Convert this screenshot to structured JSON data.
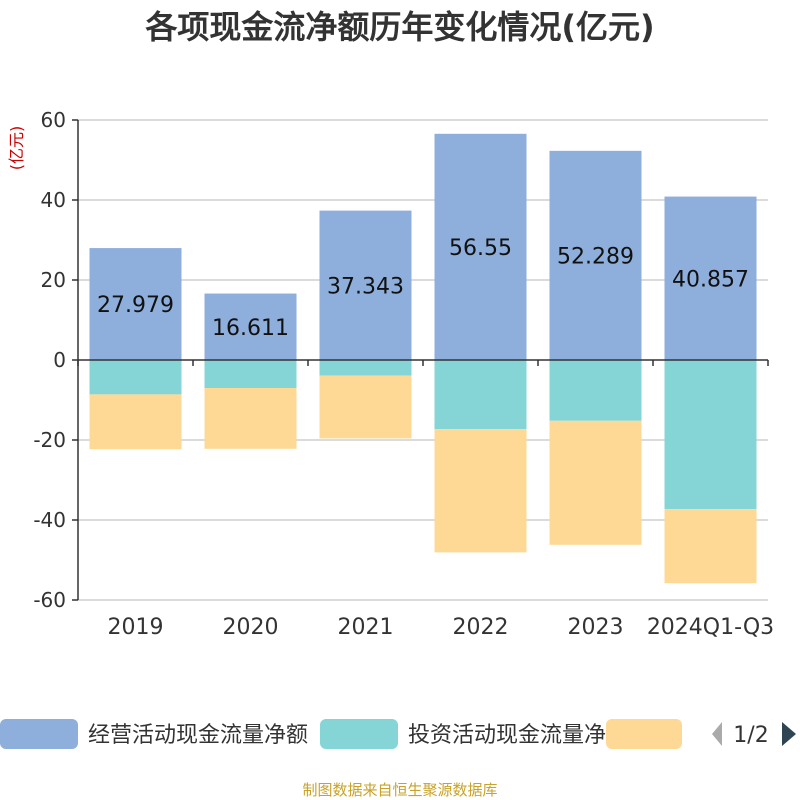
{
  "chart_data": {
    "type": "bar",
    "stacked": true,
    "title": "各项现金流净额历年变化情况(亿元)",
    "unit_label": "(亿元)",
    "categories": [
      "2019",
      "2020",
      "2021",
      "2022",
      "2023",
      "2024Q1-Q3"
    ],
    "ylim": [
      -60,
      60
    ],
    "yticks": [
      60,
      40,
      20,
      0,
      -20,
      -40,
      -60
    ],
    "grid": true,
    "legend_position": "bottom",
    "series": [
      {
        "name": "经营活动现金流量净额",
        "color": "#8eaedb",
        "values": [
          27.979,
          16.611,
          37.343,
          56.55,
          52.289,
          40.857
        ],
        "labels": [
          "27.979",
          "16.611",
          "37.343",
          "56.55",
          "52.289",
          "40.857"
        ]
      },
      {
        "name": "投资活动现金流量净额",
        "color": "#85d5d6",
        "values": [
          -8.6,
          -7.0,
          -3.9,
          -17.3,
          -15.2,
          -37.3
        ]
      },
      {
        "name": "",
        "color": "#fed996",
        "values": [
          -13.7,
          -15.2,
          -15.7,
          -30.8,
          -31.0,
          -18.5
        ]
      }
    ]
  },
  "legend": {
    "page_indicator": "1/2"
  },
  "source": "制图数据来自恒生聚源数据库"
}
